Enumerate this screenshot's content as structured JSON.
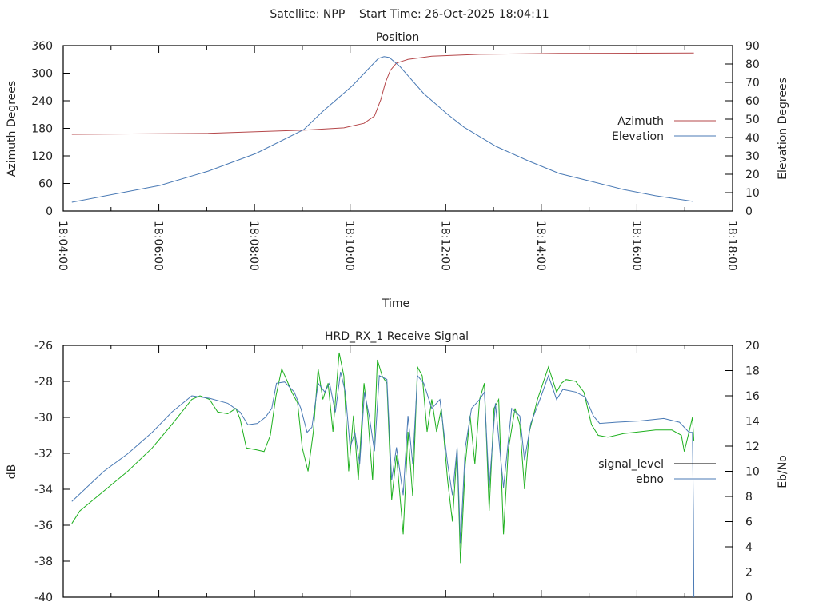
{
  "header": {
    "title": "Satellite: NPP    Start Time: 26-Oct-2025 18:04:11"
  },
  "chart_data": [
    {
      "type": "line",
      "title": "Position",
      "xlabel": "Time",
      "ylabel": "Azimuth Degrees",
      "y2label": "Elevation Degrees",
      "x_units": "minutes after 18:04:00",
      "xlim": [
        0,
        14
      ],
      "ylim": [
        0,
        360
      ],
      "y2lim": [
        0,
        90
      ],
      "x_ticks": [
        0,
        2,
        4,
        6,
        8,
        10,
        12,
        14
      ],
      "x_minor_ticks": [
        1,
        3,
        5,
        7,
        9,
        11,
        13
      ],
      "x_tick_labels": [
        "18:04:00",
        "18:06:00",
        "18:08:00",
        "18:10:00",
        "18:12:00",
        "18:14:00",
        "18:16:00",
        "18:18:00"
      ],
      "y_ticks": [
        0,
        60,
        120,
        180,
        240,
        300,
        360
      ],
      "y_tick_labels": [
        "0",
        "60",
        "120",
        "180",
        "240",
        "300",
        "360"
      ],
      "y2_ticks": [
        0,
        10,
        20,
        30,
        40,
        50,
        60,
        70,
        80,
        90
      ],
      "y2_tick_labels": [
        "0",
        "10",
        "20",
        "30",
        "40",
        "50",
        "60",
        "70",
        "80",
        "90"
      ],
      "legend_position": "right",
      "grid": false,
      "series": [
        {
          "name": "Azimuth",
          "axis": "y",
          "color": "#b5474a",
          "x": [
            0.18,
            3.03,
            5.03,
            5.87,
            6.29,
            6.51,
            6.64,
            6.74,
            6.84,
            6.97,
            7.21,
            7.71,
            8.71,
            10.38,
            13.19
          ],
          "values": [
            167,
            169,
            176,
            181,
            191,
            207,
            242,
            280,
            306,
            322,
            330,
            337,
            341,
            343,
            344
          ]
        },
        {
          "name": "Elevation",
          "axis": "y2",
          "color": "#4a7ab5",
          "x": [
            0.18,
            2.02,
            3.03,
            4.03,
            5.03,
            5.42,
            6.04,
            6.37,
            6.59,
            6.71,
            6.82,
            7.04,
            7.54,
            8.04,
            8.38,
            9.05,
            9.72,
            10.38,
            11.05,
            11.72,
            12.39,
            13.18
          ],
          "values": [
            4.8,
            13.9,
            21.7,
            31.3,
            44.3,
            54,
            68,
            77,
            83,
            84,
            83.5,
            78.7,
            63.9,
            52.6,
            45.7,
            35.2,
            27.4,
            20.4,
            16.1,
            11.7,
            8.3,
            5.2
          ]
        }
      ]
    },
    {
      "type": "line",
      "title": "HRD_RX_1 Receive Signal",
      "xlabel": "",
      "ylabel": "dB",
      "y2label": "Eb/No",
      "x_units": "minutes after 18:04:00",
      "xlim": [
        0,
        14
      ],
      "ylim": [
        -40,
        -26
      ],
      "y2lim": [
        0,
        20
      ],
      "x_ticks": [
        0,
        2,
        4,
        6,
        8,
        10,
        12,
        14
      ],
      "x_minor_ticks": [
        1,
        3,
        5,
        7,
        9,
        11,
        13
      ],
      "y_ticks": [
        -40,
        -38,
        -36,
        -34,
        -32,
        -30,
        -28,
        -26
      ],
      "y_tick_labels": [
        "-40",
        "-38",
        "-36",
        "-34",
        "-32",
        "-30",
        "-28",
        "-26"
      ],
      "y2_ticks": [
        0,
        2,
        4,
        6,
        8,
        10,
        12,
        14,
        16,
        18,
        20
      ],
      "y2_tick_labels": [
        "0",
        "2",
        "4",
        "6",
        "8",
        "10",
        "12",
        "14",
        "16",
        "18",
        "20"
      ],
      "legend_position": "right",
      "grid": false,
      "legend": [
        {
          "name": "signal_level",
          "color": "#000000"
        },
        {
          "name": "ebno",
          "color": "#4a7ab5"
        }
      ],
      "series": [
        {
          "name": "signal_level",
          "axis": "y",
          "color": "#1fb01f",
          "x": [
            0.18,
            0.35,
            0.85,
            1.35,
            1.86,
            2.27,
            2.69,
            2.86,
            3.06,
            3.23,
            3.44,
            3.61,
            3.7,
            3.83,
            4.03,
            4.2,
            4.33,
            4.45,
            4.57,
            4.67,
            4.78,
            4.9,
            5.0,
            5.12,
            5.23,
            5.33,
            5.43,
            5.54,
            5.64,
            5.77,
            5.87,
            5.97,
            6.07,
            6.17,
            6.29,
            6.37,
            6.47,
            6.57,
            6.67,
            6.77,
            6.87,
            6.97,
            7.11,
            7.21,
            7.31,
            7.41,
            7.51,
            7.61,
            7.71,
            7.81,
            7.91,
            8.04,
            8.14,
            8.24,
            8.31,
            8.41,
            8.51,
            8.61,
            8.71,
            8.81,
            8.91,
            9.01,
            9.11,
            9.21,
            9.31,
            9.45,
            9.55,
            9.65,
            9.75,
            9.92,
            10.15,
            10.32,
            10.42,
            10.52,
            10.72,
            10.89,
            11.05,
            11.19,
            11.39,
            11.72,
            12.06,
            12.39,
            12.73,
            12.93,
            12.99,
            13.09,
            13.16,
            13.19
          ],
          "values": [
            -35.9,
            -35.2,
            -34.1,
            -33.0,
            -31.7,
            -30.4,
            -29.0,
            -28.8,
            -29.0,
            -29.7,
            -29.8,
            -29.5,
            -30.1,
            -31.7,
            -31.8,
            -31.9,
            -31.0,
            -28.8,
            -27.3,
            -27.9,
            -28.6,
            -29.2,
            -31.7,
            -33.0,
            -30.8,
            -27.3,
            -29.0,
            -28.1,
            -30.8,
            -26.4,
            -27.7,
            -33.0,
            -29.9,
            -33.5,
            -28.1,
            -29.9,
            -33.5,
            -26.8,
            -27.7,
            -28.1,
            -34.6,
            -32.1,
            -36.5,
            -30.8,
            -34.4,
            -27.2,
            -27.7,
            -30.8,
            -29.0,
            -30.8,
            -29.5,
            -33.5,
            -35.8,
            -31.8,
            -38.1,
            -32.6,
            -29.9,
            -32.6,
            -29.0,
            -28.1,
            -35.2,
            -29.5,
            -29.0,
            -36.5,
            -31.8,
            -29.5,
            -30.4,
            -34.0,
            -30.8,
            -29.0,
            -27.2,
            -28.6,
            -28.1,
            -27.9,
            -28.0,
            -28.6,
            -30.4,
            -31.0,
            -31.1,
            -30.9,
            -30.8,
            -30.7,
            -30.7,
            -31.0,
            -31.9,
            -30.8,
            -30.0,
            -31.3
          ]
        },
        {
          "name": "ebno",
          "axis": "y2",
          "color": "#4a7ab5",
          "x": [
            0.18,
            0.85,
            1.35,
            1.86,
            2.27,
            2.69,
            3.06,
            3.44,
            3.7,
            3.86,
            4.06,
            4.23,
            4.36,
            4.46,
            4.63,
            4.83,
            4.97,
            5.1,
            5.2,
            5.33,
            5.47,
            5.57,
            5.69,
            5.8,
            5.9,
            6.0,
            6.1,
            6.2,
            6.3,
            6.4,
            6.51,
            6.61,
            6.77,
            6.87,
            6.97,
            7.11,
            7.21,
            7.31,
            7.41,
            7.54,
            7.71,
            7.88,
            8.04,
            8.14,
            8.24,
            8.31,
            8.41,
            8.54,
            8.71,
            8.81,
            8.91,
            9.04,
            9.21,
            9.38,
            9.55,
            9.65,
            9.78,
            9.98,
            10.15,
            10.32,
            10.45,
            10.72,
            10.92,
            11.09,
            11.22,
            11.56,
            12.06,
            12.56,
            12.89,
            13.09,
            13.16,
            13.18,
            13.19
          ],
          "values": [
            7.6,
            10.0,
            11.4,
            13.1,
            14.7,
            16.0,
            15.8,
            15.4,
            14.7,
            13.7,
            13.8,
            14.3,
            15.0,
            17.0,
            17.1,
            16.3,
            15.0,
            13.1,
            13.5,
            17.0,
            16.3,
            17.0,
            14.7,
            17.9,
            16.3,
            11.9,
            13.1,
            10.6,
            16.3,
            14.4,
            11.6,
            17.6,
            17.3,
            9.3,
            11.9,
            8.1,
            14.4,
            10.6,
            17.6,
            17.0,
            15.0,
            15.7,
            10.6,
            8.1,
            11.9,
            4.3,
            11.9,
            15.0,
            15.7,
            16.3,
            8.7,
            15.4,
            8.7,
            15.0,
            14.4,
            10.9,
            13.8,
            15.8,
            17.6,
            15.7,
            16.5,
            16.3,
            15.9,
            14.4,
            13.8,
            13.9,
            14.0,
            14.2,
            13.9,
            13.1,
            13.1,
            6.8,
            0.0
          ]
        }
      ]
    }
  ]
}
